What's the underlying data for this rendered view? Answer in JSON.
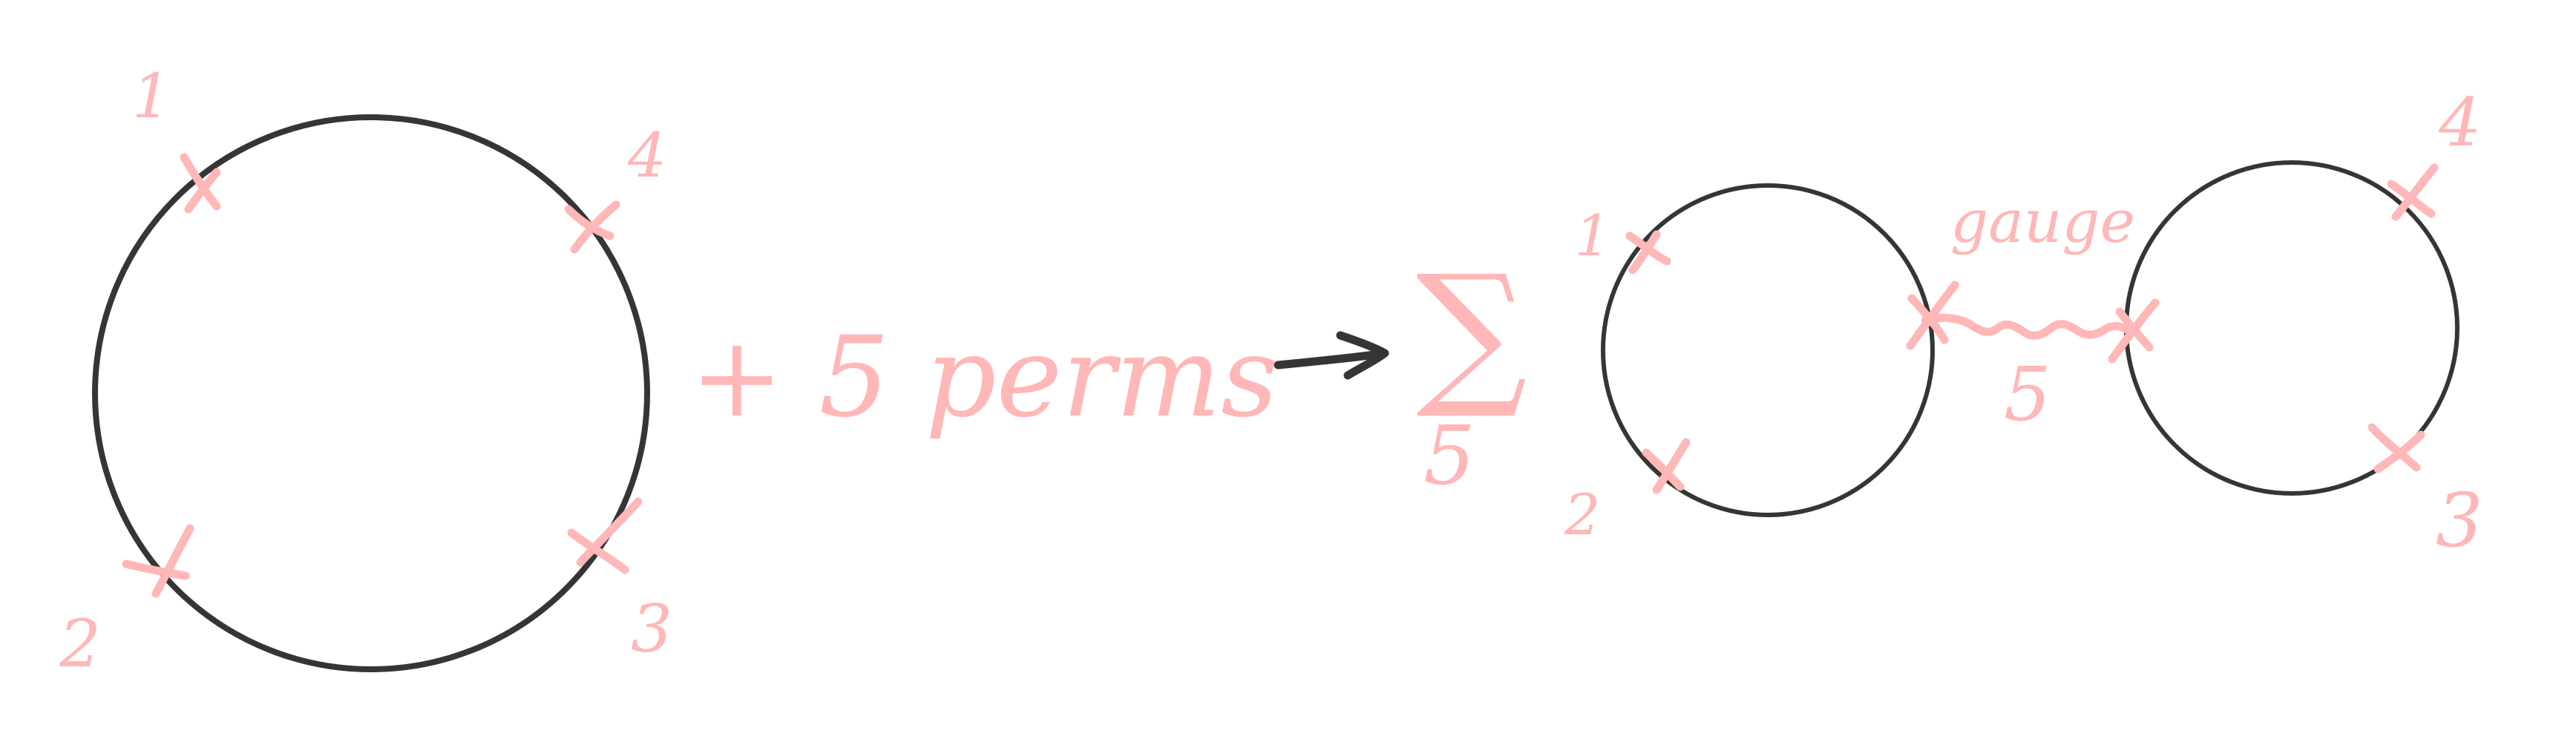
{
  "left": {
    "leg_labels": [
      "1",
      "4",
      "2",
      "3"
    ],
    "perm_text": "+ 5 perms"
  },
  "right": {
    "sum_symbol": "∑",
    "sum_index": "5",
    "leg_labels_circle_a": [
      "1",
      "2"
    ],
    "leg_labels_circle_b": [
      "4",
      "3"
    ],
    "propagator_label": "gauge",
    "propagator_index": "5"
  },
  "colors": {
    "ink": "#363536",
    "highlight": "#ffb7b7",
    "background": "#ffffff"
  }
}
